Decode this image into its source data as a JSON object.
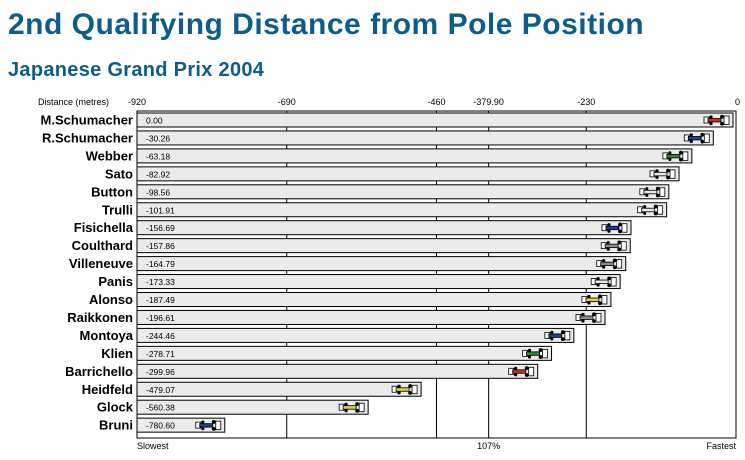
{
  "title": "2nd Qualifying Distance from Pole Position",
  "subtitle": "Japanese Grand Prix 2004",
  "colors": {
    "title": "#0c5e89",
    "bar_fill": "#ebebeb",
    "bar_stroke": "#000000"
  },
  "chart_data": {
    "type": "bar",
    "orientation": "horizontal",
    "axis_title": "Distance (metres)",
    "xlim": [
      -920,
      0
    ],
    "ticks": [
      {
        "value": -920,
        "label": "-920"
      },
      {
        "value": -690,
        "label": "-690"
      },
      {
        "value": -460,
        "label": "-460"
      },
      {
        "value": -379.9,
        "label": "-379.90"
      },
      {
        "value": -230,
        "label": "-230"
      },
      {
        "value": 0,
        "label": "0"
      }
    ],
    "bottom_labels": [
      {
        "value": -920,
        "label": "Slowest"
      },
      {
        "value": -379.9,
        "label": "107%"
      },
      {
        "value": 0,
        "label": "Fastest"
      }
    ],
    "grid_lines": [
      -690,
      -460,
      -379.9,
      -230
    ],
    "drivers": [
      {
        "name": "M.Schumacher",
        "value": 0.0,
        "label": "0.00",
        "car_color": "#d42a1a"
      },
      {
        "name": "R.Schumacher",
        "value": -30.26,
        "label": "-30.26",
        "car_color": "#1c3f9a"
      },
      {
        "name": "Webber",
        "value": -63.18,
        "label": "-63.18",
        "car_color": "#2f8a2a"
      },
      {
        "name": "Sato",
        "value": -82.92,
        "label": "-82.92",
        "car_color": "#e8e8e8"
      },
      {
        "name": "Button",
        "value": -98.56,
        "label": "-98.56",
        "car_color": "#e8e8e8"
      },
      {
        "name": "Trulli",
        "value": -101.91,
        "label": "-101.91",
        "car_color": "#e8e8e8"
      },
      {
        "name": "Fisichella",
        "value": -156.69,
        "label": "-156.69",
        "car_color": "#1c3f9a"
      },
      {
        "name": "Coulthard",
        "value": -157.86,
        "label": "-157.86",
        "car_color": "#8c8c8c"
      },
      {
        "name": "Villeneuve",
        "value": -164.79,
        "label": "-164.79",
        "car_color": "#8c8c8c"
      },
      {
        "name": "Panis",
        "value": -173.33,
        "label": "-173.33",
        "car_color": "#e8e8e8"
      },
      {
        "name": "Alonso",
        "value": -187.49,
        "label": "-187.49",
        "car_color": "#e0d040"
      },
      {
        "name": "Raikkonen",
        "value": -196.61,
        "label": "-196.61",
        "car_color": "#8c8c8c"
      },
      {
        "name": "Montoya",
        "value": -244.46,
        "label": "-244.46",
        "car_color": "#1c3f9a"
      },
      {
        "name": "Klien",
        "value": -278.71,
        "label": "-278.71",
        "car_color": "#2f8a2a"
      },
      {
        "name": "Barrichello",
        "value": -299.96,
        "label": "-299.96",
        "car_color": "#d42a1a"
      },
      {
        "name": "Heidfeld",
        "value": -479.07,
        "label": "-479.07",
        "car_color": "#e0d040"
      },
      {
        "name": "Glock",
        "value": -560.38,
        "label": "-560.38",
        "car_color": "#e0d040"
      },
      {
        "name": "Bruni",
        "value": -780.6,
        "label": "-780.60",
        "car_color": "#1c3f9a"
      }
    ]
  }
}
